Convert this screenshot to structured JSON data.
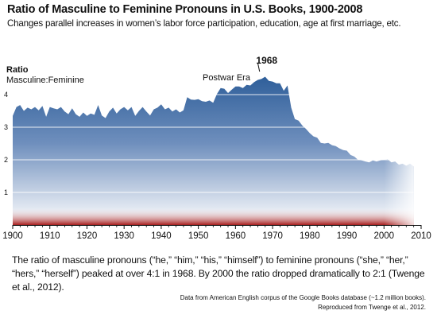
{
  "title": "Ratio of Masculine to Feminine Pronouns in U.S. Books, 1900-2008",
  "subtitle": "Changes parallel increases in women’s labor force participation, education, age at first marriage, etc.",
  "caption": "The ratio of masculine pronouns (“he,” “him,” “his,” “himself”) to feminine pronouns (“she,” “her,” “hers,” “herself”) peaked at over 4:1 in 1968. By 2000 the ratio dropped dramatically to 2:1 (Twenge et al., 2012).",
  "source_line1": "Data from American English corpus of the Google Books database (~1.2 million books).",
  "source_line2": "Reproduced from Twenge et al., 2012.",
  "chart_data": {
    "type": "area",
    "ylabel_line1": "Ratio",
    "ylabel_line2": "Masculine:Feminine",
    "xlim": [
      1900,
      2010
    ],
    "ylim": [
      0,
      4.5
    ],
    "yticks": [
      1,
      2,
      3,
      4
    ],
    "xticks": [
      1900,
      1910,
      1920,
      1930,
      1940,
      1950,
      1960,
      1970,
      1980,
      1990,
      2000,
      2010
    ],
    "grid": true,
    "annotations": [
      {
        "text": "Postwar Era",
        "x": 1958,
        "y": 4.3
      },
      {
        "text": "1968",
        "x": 1968,
        "y": 4.8
      }
    ],
    "colors": {
      "area_top": "#2f5f9a",
      "area_bottom": "#ffffff",
      "base_red": "#a61d1d"
    },
    "series": [
      {
        "x": [
          1900,
          1901,
          1902,
          1903,
          1904,
          1905,
          1906,
          1907,
          1908,
          1909,
          1910,
          1911,
          1912,
          1913,
          1914,
          1915,
          1916,
          1917,
          1918,
          1919,
          1920,
          1921,
          1922,
          1923,
          1924,
          1925,
          1926,
          1927,
          1928,
          1929,
          1930,
          1931,
          1932,
          1933,
          1934,
          1935,
          1936,
          1937,
          1938,
          1939,
          1940,
          1941,
          1942,
          1943,
          1944,
          1945,
          1946,
          1947,
          1948,
          1949,
          1950,
          1951,
          1952,
          1953,
          1954,
          1955,
          1956,
          1957,
          1958,
          1959,
          1960,
          1961,
          1962,
          1963,
          1964,
          1965,
          1966,
          1967,
          1968,
          1969,
          1970,
          1971,
          1972,
          1973,
          1974,
          1975,
          1976,
          1977,
          1978,
          1979,
          1980,
          1981,
          1982,
          1983,
          1984,
          1985,
          1986,
          1987,
          1988,
          1989,
          1990,
          1991,
          1992,
          1993,
          1994,
          1995,
          1996,
          1997,
          1998,
          1999,
          2000,
          2001,
          2002,
          2003,
          2004,
          2005,
          2006,
          2007,
          2008
        ],
        "y": [
          3.35,
          3.62,
          3.68,
          3.5,
          3.6,
          3.55,
          3.62,
          3.52,
          3.65,
          3.32,
          3.62,
          3.58,
          3.55,
          3.62,
          3.48,
          3.4,
          3.58,
          3.4,
          3.32,
          3.45,
          3.35,
          3.42,
          3.38,
          3.68,
          3.36,
          3.28,
          3.48,
          3.6,
          3.42,
          3.55,
          3.62,
          3.52,
          3.62,
          3.35,
          3.5,
          3.62,
          3.48,
          3.36,
          3.55,
          3.6,
          3.7,
          3.55,
          3.6,
          3.48,
          3.55,
          3.45,
          3.52,
          3.92,
          3.85,
          3.84,
          3.86,
          3.8,
          3.78,
          3.82,
          3.75,
          4.02,
          4.2,
          4.18,
          4.05,
          4.15,
          4.25,
          4.25,
          4.2,
          4.3,
          4.28,
          4.38,
          4.45,
          4.48,
          4.55,
          4.42,
          4.4,
          4.35,
          4.35,
          4.12,
          4.28,
          3.6,
          3.25,
          3.2,
          3.05,
          2.95,
          2.82,
          2.72,
          2.68,
          2.52,
          2.5,
          2.52,
          2.45,
          2.42,
          2.35,
          2.3,
          2.28,
          2.15,
          2.1,
          2.0,
          1.98,
          1.95,
          1.92,
          1.98,
          1.95,
          1.98,
          2.0,
          2.02,
          1.92,
          1.95,
          1.85,
          1.88,
          1.82,
          1.88,
          1.8
        ]
      }
    ]
  }
}
